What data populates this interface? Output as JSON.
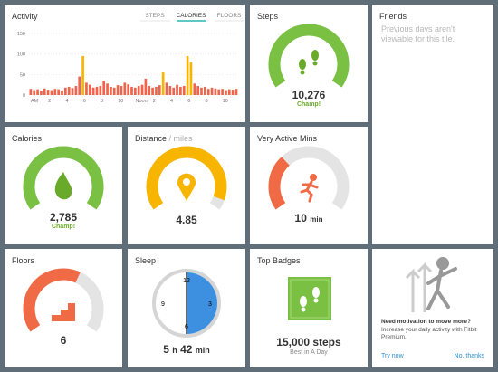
{
  "activity": {
    "title": "Activity",
    "tabs": [
      "STEPS",
      "CALORIES",
      "FLOORS"
    ],
    "active_tab": 1,
    "ylim": [
      0,
      150
    ],
    "yticks": [
      0,
      50,
      100,
      150
    ],
    "x_labels": [
      "AM",
      "2",
      "4",
      "6",
      "8",
      "10",
      "Noon",
      "2",
      "4",
      "6",
      "8",
      "10"
    ],
    "series": [
      {
        "color": "#f0644b",
        "values": [
          15,
          12,
          14,
          10,
          16,
          13,
          12,
          15,
          14,
          11,
          18,
          20,
          17,
          22,
          45,
          null,
          30,
          25,
          18,
          20,
          22,
          35,
          28,
          20,
          18,
          24,
          22,
          30,
          26,
          20,
          18,
          22,
          25,
          40,
          22,
          18,
          20,
          24,
          null,
          30,
          22,
          18,
          25,
          20,
          22,
          null,
          null,
          28,
          22,
          18,
          20,
          15,
          18,
          16,
          14,
          15,
          12,
          14,
          13,
          15
        ]
      },
      {
        "color": "#f7b500",
        "values": [
          null,
          null,
          null,
          null,
          null,
          null,
          null,
          null,
          null,
          null,
          null,
          null,
          null,
          null,
          null,
          95,
          null,
          null,
          null,
          null,
          null,
          null,
          null,
          null,
          null,
          null,
          null,
          null,
          null,
          null,
          null,
          null,
          null,
          null,
          null,
          null,
          null,
          null,
          55,
          null,
          null,
          null,
          null,
          null,
          null,
          95,
          80,
          null,
          null,
          null,
          null,
          null,
          null,
          null,
          null,
          null,
          null,
          null,
          null,
          null
        ]
      }
    ]
  },
  "tiles": {
    "steps": {
      "title": "Steps",
      "value": "10,276",
      "note": "Champ!",
      "progress": 100,
      "color": "#7ac143"
    },
    "calories": {
      "title": "Calories",
      "value": "2,785",
      "note": "Champ!",
      "progress": 100,
      "color": "#7ac143"
    },
    "distance": {
      "title": "Distance",
      "unit_title": " / miles",
      "value": "4.85",
      "progress": 94,
      "color": "#f7b500"
    },
    "active": {
      "title": "Very Active Mins",
      "value": "10",
      "unit": "min",
      "progress": 33,
      "color": "#f06b45"
    },
    "floors": {
      "title": "Floors",
      "value": "6",
      "progress": 60,
      "color": "#f06b45"
    }
  },
  "friends": {
    "title": "Friends",
    "message": "Previous days aren't viewable for this tile."
  },
  "sleep": {
    "title": "Sleep",
    "hours": "5",
    "h": "h",
    "minutes": "42",
    "min": "min",
    "clock": [
      "12",
      "3",
      "6",
      "9"
    ]
  },
  "badges": {
    "title": "Top Badges",
    "badge": "15,000 steps",
    "caption": "Best in A Day"
  },
  "premium": {
    "heading": "Need motivation to move more?",
    "text": "Increase your daily activity with Fitbit Premium.",
    "try": "Try now",
    "decline": "No, thanks"
  }
}
